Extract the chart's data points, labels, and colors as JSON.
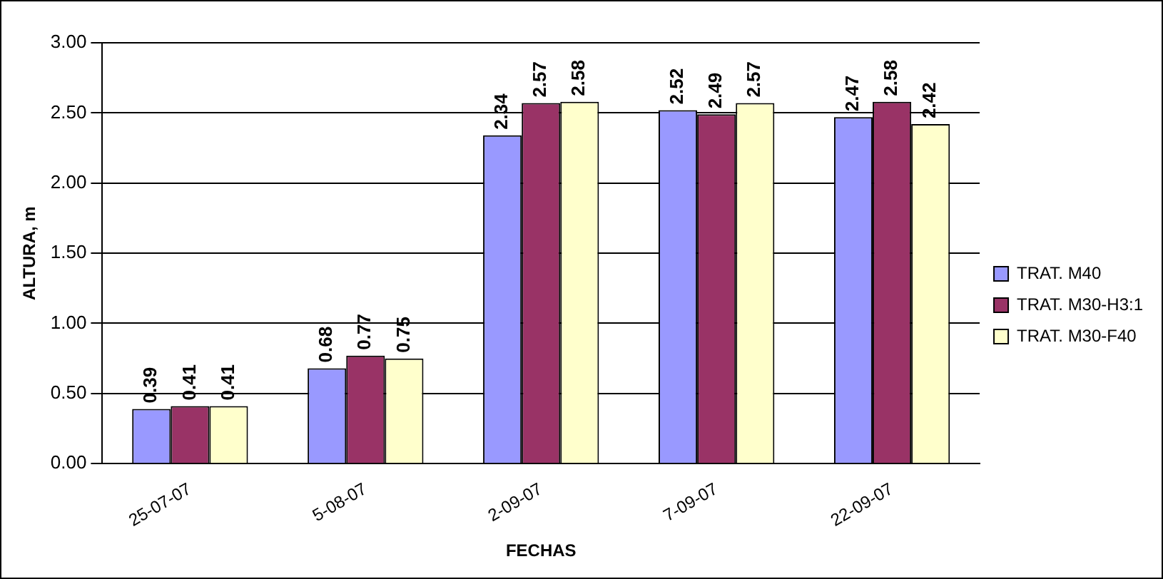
{
  "chart_data": {
    "type": "bar",
    "xlabel": "FECHAS",
    "ylabel": "ALTURA, m",
    "categories": [
      "25-07-07",
      "5-08-07",
      "2-09-07",
      "7-09-07",
      "22-09-07"
    ],
    "series": [
      {
        "name": "TRAT. M40",
        "color": "#9999ff",
        "values": [
          0.39,
          0.68,
          2.34,
          2.52,
          2.47
        ]
      },
      {
        "name": "TRAT. M30-H3:1",
        "color": "#993366",
        "values": [
          0.41,
          0.77,
          2.57,
          2.49,
          2.58
        ]
      },
      {
        "name": "TRAT. M30-F40",
        "color": "#ffffcc",
        "values": [
          0.41,
          0.75,
          2.58,
          2.57,
          2.42
        ]
      }
    ],
    "ylim": [
      0,
      3
    ],
    "yticks": [
      {
        "value": 0,
        "label": "0.00"
      },
      {
        "value": 0.5,
        "label": "0.50"
      },
      {
        "value": 1,
        "label": "1.00"
      },
      {
        "value": 1.5,
        "label": "1.50"
      },
      {
        "value": 2,
        "label": "2.00"
      },
      {
        "value": 2.5,
        "label": "2.50"
      },
      {
        "value": 3,
        "label": "3.00"
      }
    ],
    "grid": "y",
    "legend": "right",
    "data_labels": true
  }
}
